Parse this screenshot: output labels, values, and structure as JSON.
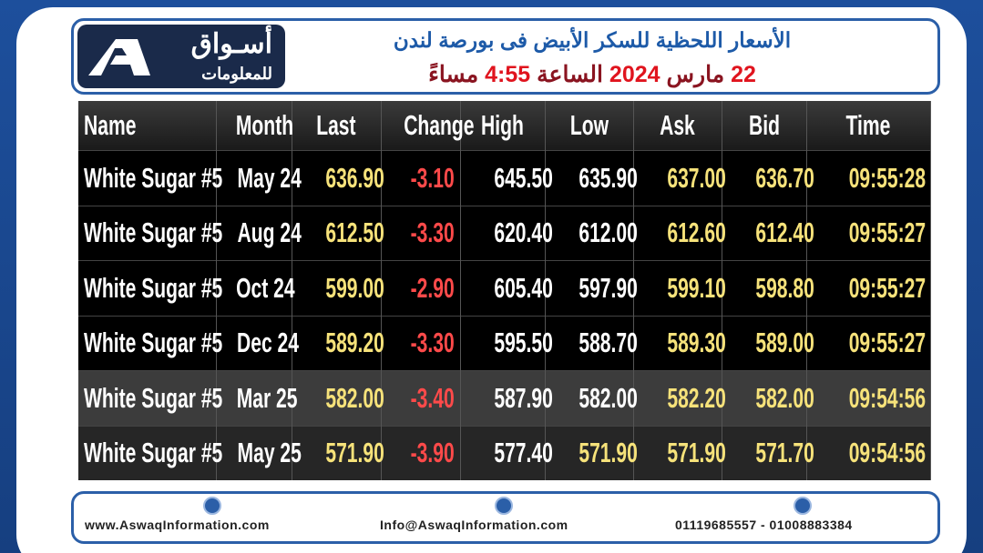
{
  "header": {
    "logo_text": "أسـواق",
    "logo_subtext": "للمعلومات",
    "title": "الأسعار اللحظية للسكر الأبيض فى بورصة لندن",
    "subtitle": [
      "22",
      "مارس",
      "2024",
      "الساعة",
      "4:55",
      "مساءً"
    ]
  },
  "table": {
    "columns": [
      "Name",
      "Month",
      "Last",
      "Change",
      "High",
      "Low",
      "Ask",
      "Bid",
      "Time"
    ],
    "rows": [
      [
        "White Sugar #5",
        "May 24",
        "636.90",
        "-3.10",
        "645.50",
        "635.90",
        "637.00",
        "636.70",
        "09:55:28"
      ],
      [
        "White Sugar #5",
        "Aug 24",
        "612.50",
        "-3.30",
        "620.40",
        "612.00",
        "612.60",
        "612.40",
        "09:55:27"
      ],
      [
        "White Sugar #5",
        "Oct 24",
        "599.00",
        "-2.90",
        "605.40",
        "597.90",
        "599.10",
        "598.80",
        "09:55:27"
      ],
      [
        "White Sugar #5",
        "Dec 24",
        "589.20",
        "-3.30",
        "595.50",
        "588.70",
        "589.30",
        "589.00",
        "09:55:27"
      ],
      [
        "White Sugar #5",
        "Mar 25",
        "582.00",
        "-3.40",
        "587.90",
        "582.00",
        "582.20",
        "582.00",
        "09:54:56"
      ],
      [
        "White Sugar #5",
        "May 25",
        "571.90",
        "-3.90",
        "577.40",
        "571.90",
        "571.90",
        "571.70",
        "09:54:56"
      ]
    ]
  },
  "footer": {
    "website": "www.AswaqInformation.com",
    "email": "Info@AswaqInformation.com",
    "phone": "01119685557 - 01008883384"
  }
}
